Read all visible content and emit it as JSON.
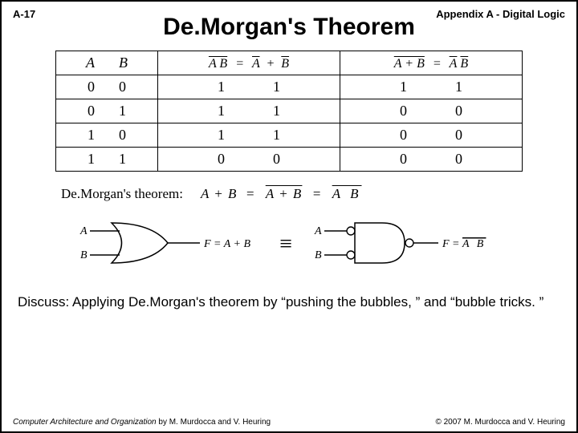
{
  "header": {
    "page_label": "A-17",
    "section": "Appendix A - Digital Logic"
  },
  "title": "De.Morgan's Theorem",
  "truth_table": {
    "header": {
      "col_A": "A",
      "col_B": "B",
      "expr1_left": "A B",
      "expr1_right_A": "A",
      "expr1_right_B": "B",
      "expr2_left": "A + B",
      "expr2_right_A": "A",
      "expr2_right_B": "B"
    },
    "rows": [
      {
        "A": "0",
        "B": "0",
        "c1a": "1",
        "c1b": "1",
        "c2a": "1",
        "c2b": "1"
      },
      {
        "A": "0",
        "B": "1",
        "c1a": "1",
        "c1b": "1",
        "c2a": "0",
        "c2b": "0"
      },
      {
        "A": "1",
        "B": "0",
        "c1a": "1",
        "c1b": "1",
        "c2a": "0",
        "c2b": "0"
      },
      {
        "A": "1",
        "B": "1",
        "c1a": "0",
        "c1b": "0",
        "c2a": "0",
        "c2b": "0"
      }
    ]
  },
  "theorem": {
    "label": "De.Morgan's theorem:",
    "lhs": "A + B",
    "mid": "A + B",
    "rhs": "A B"
  },
  "gates": {
    "left": {
      "inA": "A",
      "inB": "B",
      "out": "F = A + B"
    },
    "right": {
      "inA": "A",
      "inB": "B",
      "out_prefix": "F = ",
      "out_expr": "A B"
    }
  },
  "discuss": "Discuss: Applying De.Morgan's theorem by “pushing the bubbles, ” and “bubble tricks. ”",
  "footer": {
    "book_italic": "Computer Architecture and Organization",
    "book_rest": " by M. Murdocca and V. Heuring",
    "copyright": "© 2007 M. Murdocca and V. Heuring"
  },
  "style": {
    "page_border_color": "#000000",
    "background": "#ffffff",
    "title_fontsize": 30,
    "body_fontsize": 17,
    "table_fontsize": 18,
    "footer_fontsize": 10,
    "stroke_width": 1.5
  }
}
